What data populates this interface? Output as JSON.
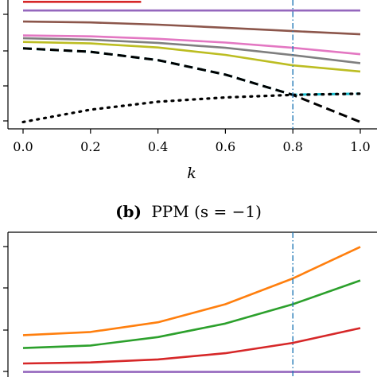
{
  "chart_data": [
    {
      "type": "line",
      "panel": "top",
      "xlabel": "k",
      "x_ticks": [
        "0.0",
        "0.2",
        "0.4",
        "0.6",
        "0.8",
        "1.0"
      ],
      "xlim": [
        -0.04,
        1.04
      ],
      "ylim": [
        0,
        1
      ],
      "grid": false,
      "vline": {
        "x": 0.8,
        "color": "#1f77b4",
        "style": "dashdot"
      },
      "series": [
        {
          "color": "#d62728",
          "style": "solid",
          "x": [
            0.0,
            0.35
          ],
          "y": [
            0.985,
            0.985
          ]
        },
        {
          "color": "#9467bd",
          "style": "solid",
          "x": [
            0.0,
            0.2,
            0.4,
            0.6,
            0.8,
            1.0
          ],
          "y": [
            0.915,
            0.915,
            0.915,
            0.915,
            0.915,
            0.915
          ]
        },
        {
          "color": "#8c564b",
          "style": "solid",
          "x": [
            0.0,
            0.2,
            0.4,
            0.6,
            0.8,
            1.0
          ],
          "y": [
            0.825,
            0.818,
            0.8,
            0.775,
            0.748,
            0.722
          ]
        },
        {
          "color": "#e377c2",
          "style": "solid",
          "x": [
            0.0,
            0.2,
            0.4,
            0.6,
            0.8,
            1.0
          ],
          "y": [
            0.712,
            0.705,
            0.685,
            0.655,
            0.612,
            0.56
          ]
        },
        {
          "color": "#7f7f7f",
          "style": "solid",
          "x": [
            0.0,
            0.2,
            0.4,
            0.6,
            0.8,
            1.0
          ],
          "y": [
            0.69,
            0.678,
            0.652,
            0.612,
            0.553,
            0.488
          ]
        },
        {
          "color": "#bcbd22",
          "style": "solid",
          "x": [
            0.0,
            0.2,
            0.4,
            0.6,
            0.8,
            1.0
          ],
          "y": [
            0.66,
            0.648,
            0.615,
            0.555,
            0.47,
            0.42
          ]
        },
        {
          "color": "#17becf",
          "style": "dashed",
          "x": [
            0.0,
            0.2,
            0.4,
            0.6,
            0.8,
            0.82,
            1.0
          ],
          "y": [
            0.608,
            0.58,
            0.512,
            0.395,
            0.23,
            0.233,
            0.24
          ]
        },
        {
          "color": "#000000",
          "style": "dashed",
          "x": [
            0.0,
            0.2,
            0.4,
            0.6,
            0.8,
            1.0
          ],
          "y": [
            0.608,
            0.58,
            0.512,
            0.395,
            0.23,
            0.01
          ]
        },
        {
          "color": "#000000",
          "style": "dotted",
          "x": [
            0.0,
            0.2,
            0.4,
            0.6,
            0.8,
            1.0
          ],
          "y": [
            0.01,
            0.11,
            0.175,
            0.21,
            0.23,
            0.24
          ]
        }
      ]
    },
    {
      "type": "line",
      "panel": "bottom",
      "title": "PPM (s = −1)",
      "title_prefix": "(b)",
      "xlim": [
        -0.04,
        1.04
      ],
      "ylim": [
        0,
        1
      ],
      "grid": false,
      "vline": {
        "x": 0.8,
        "color": "#1f77b4",
        "style": "dashdot"
      },
      "series": [
        {
          "color": "#ff7f0e",
          "style": "solid",
          "x": [
            0.0,
            0.2,
            0.4,
            0.6,
            0.8,
            1.0
          ],
          "y": [
            0.3,
            0.325,
            0.4,
            0.54,
            0.74,
            0.985
          ]
        },
        {
          "color": "#2ca02c",
          "style": "solid",
          "x": [
            0.0,
            0.2,
            0.4,
            0.6,
            0.8,
            1.0
          ],
          "y": [
            0.2,
            0.22,
            0.285,
            0.39,
            0.54,
            0.725
          ]
        },
        {
          "color": "#d62728",
          "style": "solid",
          "x": [
            0.0,
            0.2,
            0.4,
            0.6,
            0.8,
            1.0
          ],
          "y": [
            0.08,
            0.088,
            0.112,
            0.16,
            0.24,
            0.355
          ]
        },
        {
          "color": "#9467bd",
          "style": "solid",
          "x": [
            0.0,
            0.2,
            0.4,
            0.6,
            0.8,
            1.0
          ],
          "y": [
            0.015,
            0.015,
            0.015,
            0.015,
            0.015,
            0.015
          ]
        }
      ]
    }
  ]
}
